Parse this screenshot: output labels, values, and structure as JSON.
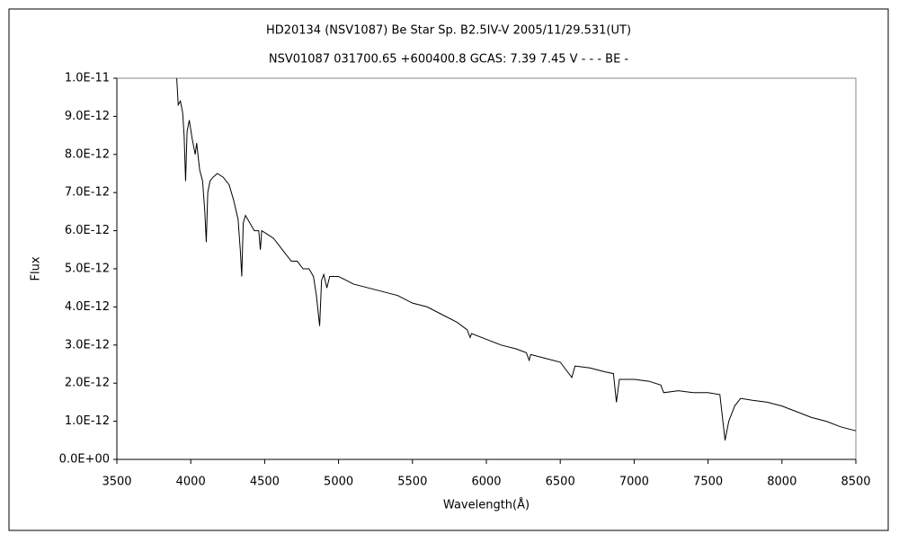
{
  "chart_data": {
    "type": "line",
    "title": "HD20134 (NSV1087)    Be Star    Sp. B2.5IV-V    2005/11/29.531(UT)",
    "subtitle": "NSV01087 031700.65 +600400.8 GCAS: 7.39 7.45 V - - - BE -",
    "x_label": "Wavelength(Å)",
    "y_label": "Flux",
    "color": "#000000",
    "x": [
      3905,
      3915,
      3930,
      3945,
      3955,
      3965,
      3975,
      3990,
      4010,
      4030,
      4040,
      4060,
      4080,
      4095,
      4105,
      4115,
      4130,
      4150,
      4180,
      4220,
      4260,
      4290,
      4320,
      4335,
      4345,
      4355,
      4370,
      4400,
      4430,
      4460,
      4471,
      4480,
      4520,
      4560,
      4600,
      4640,
      4680,
      4720,
      4760,
      4800,
      4830,
      4850,
      4872,
      4885,
      4900,
      4921,
      4940,
      5000,
      5100,
      5200,
      5300,
      5400,
      5500,
      5600,
      5700,
      5800,
      5870,
      5890,
      5900,
      6000,
      6100,
      6200,
      6270,
      6290,
      6300,
      6400,
      6500,
      6578,
      6600,
      6700,
      6800,
      6860,
      6880,
      6900,
      7000,
      7100,
      7180,
      7200,
      7300,
      7400,
      7500,
      7580,
      7615,
      7640,
      7680,
      7720,
      7800,
      7900,
      8000,
      8100,
      8200,
      8300,
      8400,
      8500
    ],
    "values": [
      1e-11,
      9.3e-12,
      9.4e-12,
      9.1e-12,
      8.5e-12,
      7.3e-12,
      8.6e-12,
      8.9e-12,
      8.4e-12,
      8e-12,
      8.3e-12,
      7.6e-12,
      7.3e-12,
      6.5e-12,
      5.7e-12,
      7e-12,
      7.3e-12,
      7.4e-12,
      7.5e-12,
      7.4e-12,
      7.2e-12,
      6.8e-12,
      6.3e-12,
      5.5e-12,
      4.8e-12,
      6.2e-12,
      6.4e-12,
      6.2e-12,
      6e-12,
      6e-12,
      5.5e-12,
      6e-12,
      5.9e-12,
      5.8e-12,
      5.6e-12,
      5.4e-12,
      5.2e-12,
      5.2e-12,
      5e-12,
      5e-12,
      4.8e-12,
      4.3e-12,
      3.5e-12,
      4.7e-12,
      4.85e-12,
      4.5e-12,
      4.8e-12,
      4.8e-12,
      4.6e-12,
      4.5e-12,
      4.4e-12,
      4.3e-12,
      4.1e-12,
      4e-12,
      3.8e-12,
      3.6e-12,
      3.4e-12,
      3.2e-12,
      3.3e-12,
      3.15e-12,
      3e-12,
      2.9e-12,
      2.8e-12,
      2.6e-12,
      2.75e-12,
      2.65e-12,
      2.55e-12,
      2.15e-12,
      2.45e-12,
      2.4e-12,
      2.3e-12,
      2.25e-12,
      1.5e-12,
      2.1e-12,
      2.1e-12,
      2.05e-12,
      1.95e-12,
      1.75e-12,
      1.8e-12,
      1.75e-12,
      1.75e-12,
      1.7e-12,
      5e-13,
      1e-12,
      1.4e-12,
      1.6e-12,
      1.55e-12,
      1.5e-12,
      1.4e-12,
      1.25e-12,
      1.1e-12,
      1e-12,
      8.5e-13,
      7.5e-13
    ],
    "xlim": [
      3500,
      8500
    ],
    "xticks": [
      3500,
      4000,
      4500,
      5000,
      5500,
      6000,
      6500,
      7000,
      7500,
      8000,
      8500
    ],
    "ylim": [
      0,
      1e-11
    ],
    "yticks": [
      {
        "value": 0,
        "label": "0.0E+00"
      },
      {
        "value": 1e-12,
        "label": "1.0E-12"
      },
      {
        "value": 2e-12,
        "label": "2.0E-12"
      },
      {
        "value": 3e-12,
        "label": "3.0E-12"
      },
      {
        "value": 4e-12,
        "label": "4.0E-12"
      },
      {
        "value": 5e-12,
        "label": "5.0E-12"
      },
      {
        "value": 6e-12,
        "label": "6.0E-12"
      },
      {
        "value": 7e-12,
        "label": "7.0E-12"
      },
      {
        "value": 8e-12,
        "label": "8.0E-12"
      },
      {
        "value": 9e-12,
        "label": "9.0E-12"
      },
      {
        "value": 1e-11,
        "label": "1.0E-11"
      }
    ],
    "grid": false
  }
}
